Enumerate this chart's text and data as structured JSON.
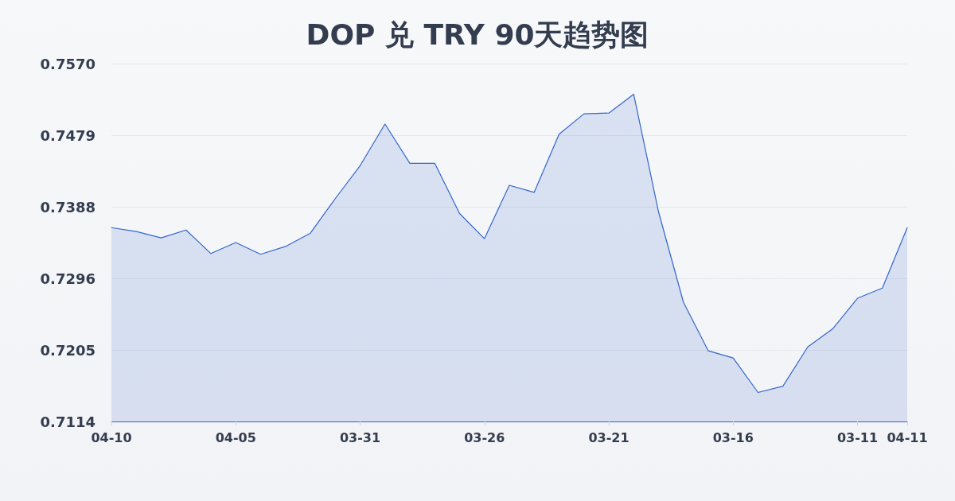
{
  "chart_data": {
    "type": "area",
    "title": "DOP 兑 TRY 90天趋势图",
    "categories": [
      "04-10",
      null,
      null,
      null,
      null,
      "04-05",
      null,
      null,
      null,
      null,
      "03-31",
      null,
      null,
      null,
      null,
      "03-26",
      null,
      null,
      null,
      null,
      "03-21",
      null,
      null,
      null,
      null,
      "03-16",
      null,
      null,
      null,
      null,
      "03-11",
      null,
      "04-11"
    ],
    "values": [
      0.7361,
      0.7356,
      0.7348,
      0.7358,
      0.7328,
      0.7342,
      0.7327,
      0.7337,
      0.7354,
      0.7398,
      0.744,
      0.7493,
      0.7443,
      0.7443,
      0.7379,
      0.7347,
      0.7415,
      0.7406,
      0.748,
      0.7506,
      0.7507,
      0.7531,
      0.7381,
      0.7266,
      0.7204,
      0.7195,
      0.7151,
      0.7159,
      0.7209,
      0.7232,
      0.7271,
      0.7284,
      0.7361
    ],
    "color": "#3366cc",
    "ylim": [
      0.7114,
      0.757
    ],
    "yticks": [
      0.7114,
      {
        "value": 0.72052,
        "label": "0.7205"
      },
      {
        "value": 0.72964,
        "label": "0.7296"
      },
      {
        "value": 0.73876,
        "label": "0.7388"
      },
      {
        "value": 0.74788,
        "label": "0.7479"
      },
      {
        "value": 0.757,
        "label": "0.7570"
      }
    ],
    "grid": "y",
    "marker": "none"
  }
}
